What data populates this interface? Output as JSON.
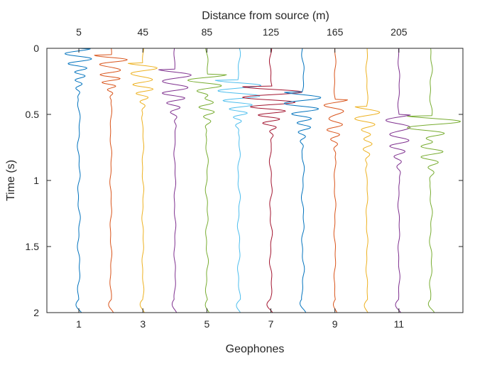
{
  "chart_data": {
    "type": "line",
    "title": "",
    "xlabel": "Geophones",
    "ylabel": "Time (s)",
    "top_xlabel": "Distance from source (m)",
    "xlim": [
      0,
      13
    ],
    "ylim": [
      2,
      0
    ],
    "y_reversed": true,
    "grid": false,
    "legend": "none",
    "x_ticks": [
      1,
      3,
      5,
      7,
      9,
      11
    ],
    "x_tick_labels": [
      "1",
      "3",
      "5",
      "7",
      "9",
      "11"
    ],
    "top_ticks": [
      1,
      3,
      5,
      7,
      9,
      11
    ],
    "top_tick_labels": [
      "5",
      "45",
      "85",
      "125",
      "165",
      "205"
    ],
    "y_ticks": [
      0,
      0.5,
      1,
      1.5,
      2
    ],
    "y_tick_labels": [
      "0",
      "0.5",
      "1",
      "1.5",
      "2"
    ],
    "time_range": [
      0,
      2
    ],
    "series": [
      {
        "geophone": 1,
        "color": "#0072BD",
        "arrival_time": 0.02,
        "amplitude": 0.42,
        "polarity": -1,
        "period": 0.08,
        "wiggle": 0.03
      },
      {
        "geophone": 2,
        "color": "#D95319",
        "arrival_time": 0.07,
        "amplitude": 0.55,
        "polarity": 1,
        "period": 0.07,
        "wiggle": 0.02
      },
      {
        "geophone": 3,
        "color": "#EDB120",
        "arrival_time": 0.13,
        "amplitude": 0.5,
        "polarity": 1,
        "period": 0.08,
        "wiggle": 0.02
      },
      {
        "geophone": 4,
        "color": "#7E2F8E",
        "arrival_time": 0.18,
        "amplitude": 0.55,
        "polarity": 1,
        "period": 0.09,
        "wiggle": 0.02
      },
      {
        "geophone": 5,
        "color": "#77AC30",
        "arrival_time": 0.22,
        "amplitude": 0.6,
        "polarity": -1,
        "period": 0.09,
        "wiggle": 0.03
      },
      {
        "geophone": 6,
        "color": "#4DBEEE",
        "arrival_time": 0.26,
        "amplitude": 0.75,
        "polarity": 1,
        "period": 0.08,
        "wiggle": 0.03
      },
      {
        "geophone": 7,
        "color": "#A2142F",
        "arrival_time": 0.31,
        "amplitude": 0.95,
        "polarity": 1,
        "period": 0.08,
        "wiggle": 0.03
      },
      {
        "geophone": 8,
        "color": "#0072BD",
        "arrival_time": 0.35,
        "amplitude": 0.6,
        "polarity": 1,
        "period": 0.09,
        "wiggle": 0.03
      },
      {
        "geophone": 9,
        "color": "#D95319",
        "arrival_time": 0.41,
        "amplitude": 0.4,
        "polarity": -1,
        "period": 0.09,
        "wiggle": 0.02
      },
      {
        "geophone": 10,
        "color": "#EDB120",
        "arrival_time": 0.46,
        "amplitude": 0.4,
        "polarity": 1,
        "period": 0.1,
        "wiggle": 0.02
      },
      {
        "geophone": 11,
        "color": "#7E2F8E",
        "arrival_time": 0.52,
        "amplitude": 0.45,
        "polarity": -1,
        "period": 0.1,
        "wiggle": 0.02
      },
      {
        "geophone": 12,
        "color": "#77AC30",
        "arrival_time": 0.53,
        "amplitude": 0.9,
        "polarity": 1,
        "period": 0.1,
        "wiggle": 0.03
      }
    ]
  }
}
